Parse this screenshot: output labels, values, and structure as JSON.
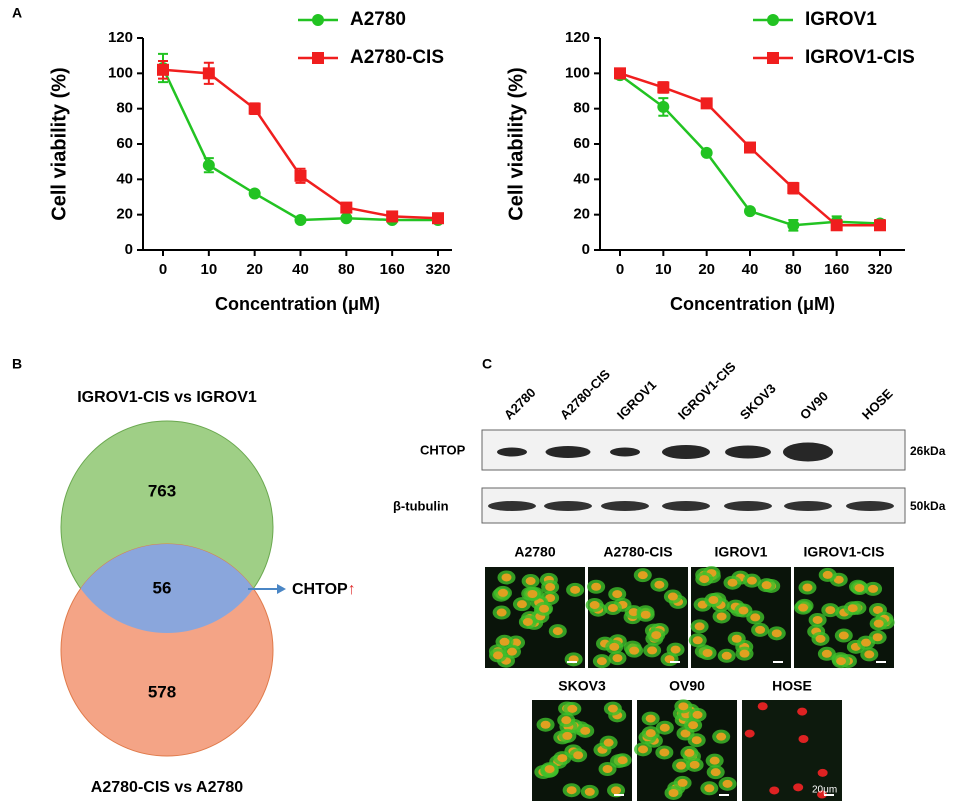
{
  "panels": {
    "a": "A",
    "b": "B",
    "c": "C"
  },
  "chart_data": [
    {
      "type": "line",
      "xlabel": "Concentration (μM)",
      "ylabel": "Cell viability (%)",
      "categories": [
        "0",
        "10",
        "20",
        "40",
        "80",
        "160",
        "320"
      ],
      "ylim": [
        0,
        120
      ],
      "yticks": [
        0,
        20,
        40,
        60,
        80,
        100,
        120
      ],
      "series": [
        {
          "name": "A2780",
          "color": "#22c322",
          "marker": "circle",
          "values": [
            103,
            48,
            32,
            17,
            18,
            17,
            17
          ],
          "errors": [
            8,
            4,
            1,
            1,
            1,
            1,
            1
          ]
        },
        {
          "name": "A2780-CIS",
          "color": "#f01e1e",
          "marker": "square",
          "values": [
            102,
            100,
            80,
            42,
            24,
            19,
            18
          ],
          "errors": [
            5,
            6,
            3,
            4,
            2,
            1,
            1
          ]
        }
      ]
    },
    {
      "type": "line",
      "xlabel": "Concentration (μM)",
      "ylabel": "Cell viability (%)",
      "categories": [
        "0",
        "10",
        "20",
        "40",
        "80",
        "160",
        "320"
      ],
      "ylim": [
        0,
        120
      ],
      "yticks": [
        0,
        20,
        40,
        60,
        80,
        100,
        120
      ],
      "series": [
        {
          "name": "IGROV1",
          "color": "#22c322",
          "marker": "circle",
          "values": [
            99,
            81,
            55,
            22,
            14,
            16,
            15
          ],
          "errors": [
            2,
            5,
            1,
            1,
            3,
            3,
            2
          ]
        },
        {
          "name": "IGROV1-CIS",
          "color": "#f01e1e",
          "marker": "square",
          "values": [
            100,
            92,
            83,
            58,
            35,
            14,
            14
          ],
          "errors": [
            2,
            3,
            2,
            2,
            3,
            2,
            2
          ]
        }
      ]
    }
  ],
  "venn": {
    "title_top": "IGROV1-CIS vs IGROV1",
    "title_bottom": "A2780-CIS vs A2780",
    "top": "763",
    "overlap": "56",
    "bottom": "578",
    "arrow_label": "CHTOP",
    "arrow_symbol": "↑"
  },
  "blot": {
    "lanes": [
      "A2780",
      "A2780-CIS",
      "IGROV1",
      "IGROV1-CIS",
      "SKOV3",
      "OV90",
      "HOSE"
    ],
    "rows": [
      {
        "name": "CHTOP",
        "size": "26kDa"
      },
      {
        "name": "β-tubulin",
        "size": "50kDa"
      }
    ]
  },
  "images": {
    "row1": [
      "A2780",
      "A2780-CIS",
      "IGROV1",
      "IGROV1-CIS"
    ],
    "row2": [
      "SKOV3",
      "OV90",
      "HOSE"
    ],
    "scale_bar": "20μm"
  }
}
